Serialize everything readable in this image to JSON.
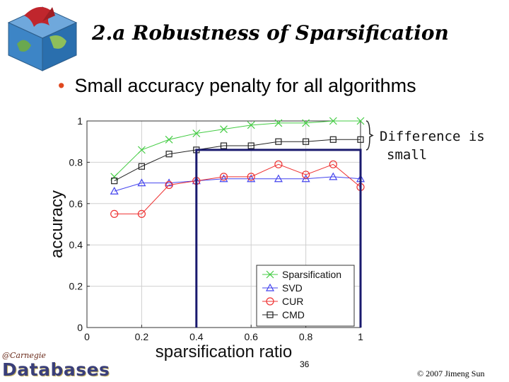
{
  "slide": {
    "title": "2.a Robustness of Sparsification",
    "bullet": "Small accuracy penalty for all algorithms",
    "annotation_line1": "Difference is",
    "annotation_line2": "small",
    "page_number": "36",
    "copyright": "© 2007 Jimeng Sun",
    "footer_logo_top": "@Carnegie",
    "footer_logo_main": "Databases"
  },
  "colors": {
    "sparsification": "#44cc44",
    "svd": "#4444ee",
    "cur": "#ee3333",
    "cmd": "#222222",
    "highlight_box": "#1a1a6e",
    "bullet": "#e0481f"
  },
  "chart_data": {
    "type": "line",
    "xlabel": "sparsification ratio",
    "ylabel": "accuracy",
    "xlim": [
      0,
      1
    ],
    "ylim": [
      0,
      1
    ],
    "xticks": [
      "0",
      "0.2",
      "0.4",
      "0.6",
      "0.8",
      "1"
    ],
    "yticks": [
      "0",
      "0.2",
      "0.4",
      "0.6",
      "0.8",
      "1"
    ],
    "grid": true,
    "legend_position": "bottom-right",
    "x": [
      0.1,
      0.2,
      0.3,
      0.4,
      0.5,
      0.6,
      0.7,
      0.8,
      0.9,
      1.0
    ],
    "series": [
      {
        "name": "Sparsification",
        "marker": "x",
        "values": [
          0.73,
          0.86,
          0.91,
          0.94,
          0.96,
          0.98,
          0.99,
          0.99,
          1.0,
          1.0
        ]
      },
      {
        "name": "SVD",
        "marker": "triangle",
        "values": [
          0.66,
          0.7,
          0.7,
          0.71,
          0.72,
          0.72,
          0.72,
          0.72,
          0.73,
          0.72
        ]
      },
      {
        "name": "CUR",
        "marker": "circle",
        "values": [
          0.55,
          0.55,
          0.69,
          0.71,
          0.73,
          0.73,
          0.79,
          0.74,
          0.79,
          0.68
        ]
      },
      {
        "name": "CMD",
        "marker": "square",
        "values": [
          0.71,
          0.78,
          0.84,
          0.86,
          0.88,
          0.88,
          0.9,
          0.9,
          0.91,
          0.91
        ]
      }
    ],
    "highlight": {
      "x_start": 0.4,
      "x_end": 1.0,
      "y_top": 0.86
    }
  }
}
